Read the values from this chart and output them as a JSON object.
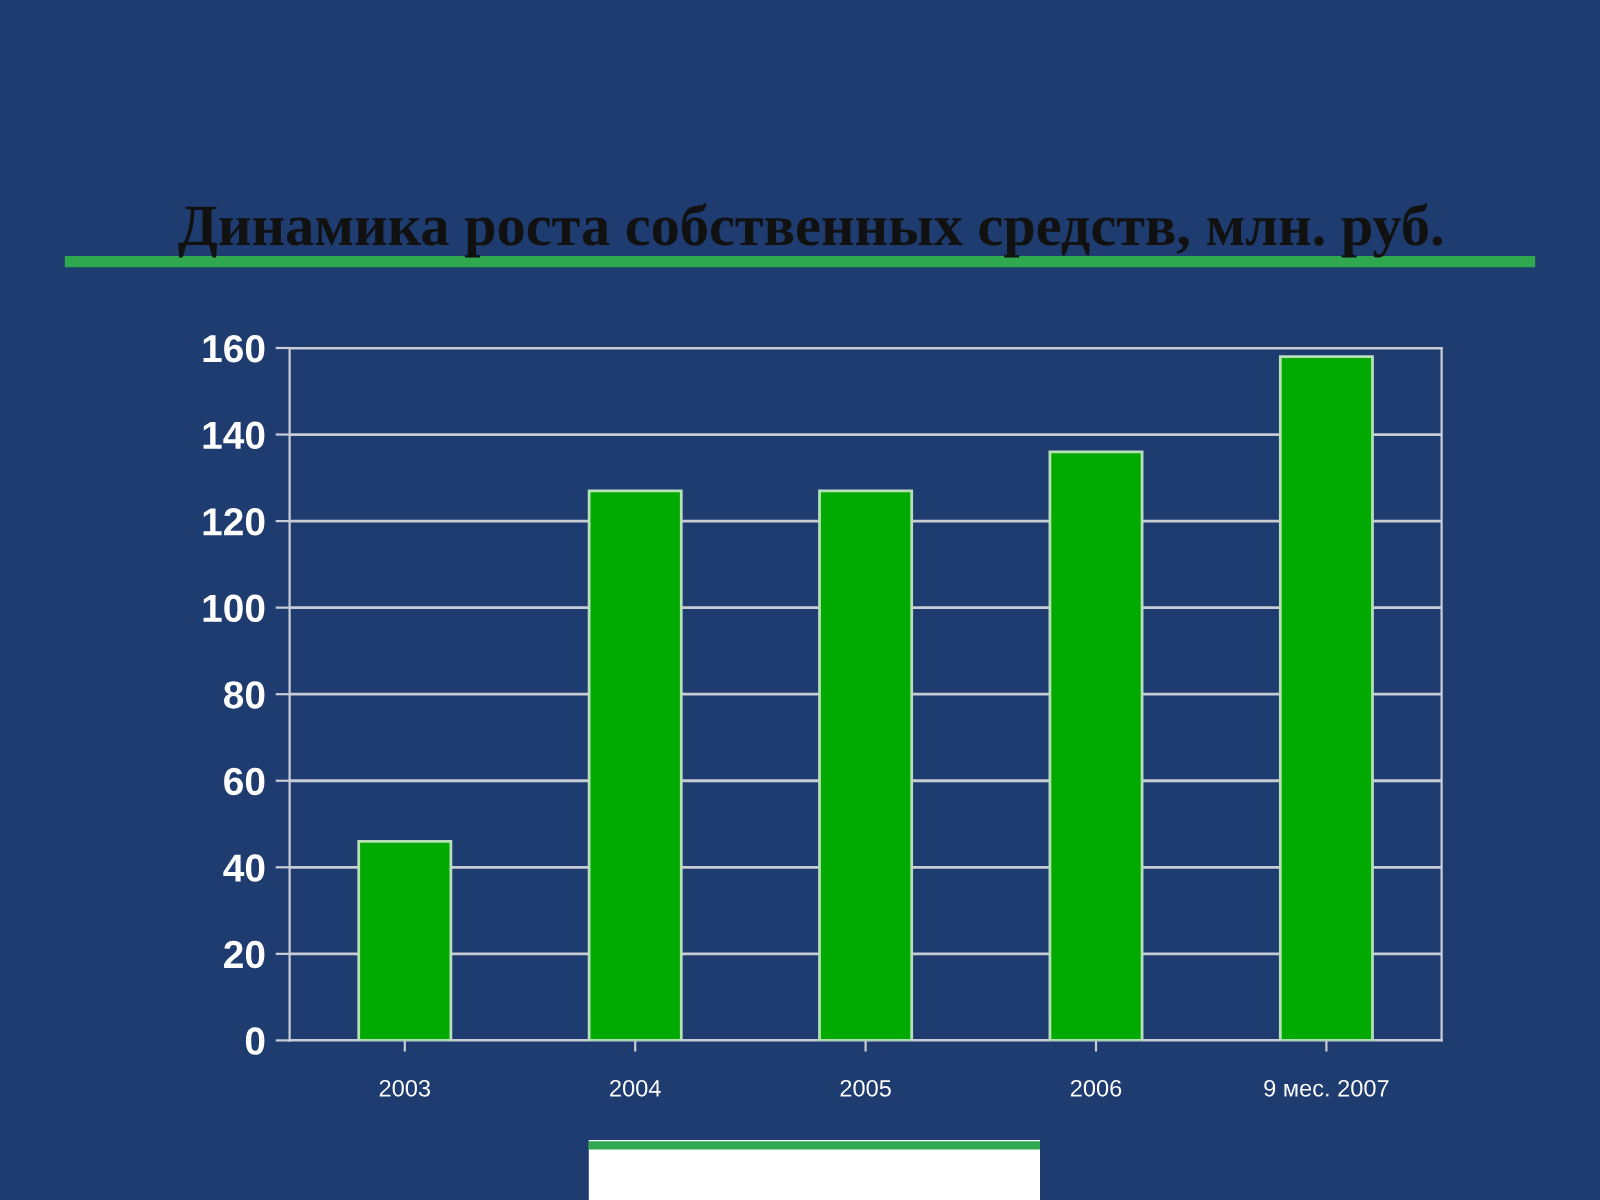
{
  "chart_data": {
    "type": "bar",
    "title": "Динамика роста собственных средств, млн. руб.",
    "categories": [
      "2003",
      "2004",
      "2005",
      "2006",
      "9 мес. 2007"
    ],
    "values": [
      46,
      127,
      127,
      136,
      158
    ],
    "color": "#00aa00",
    "ylim": [
      0,
      160
    ],
    "yticks": [
      0,
      20,
      40,
      60,
      80,
      100,
      120,
      140,
      160
    ],
    "grid": "y"
  }
}
